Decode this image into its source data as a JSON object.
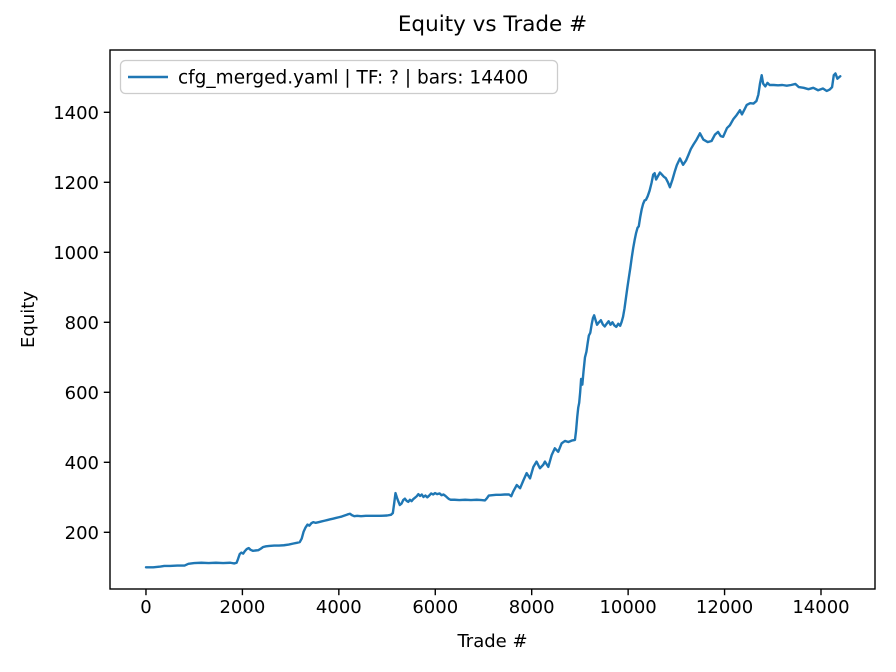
{
  "figure": {
    "title": "Equity vs Trade #",
    "xlabel": "Trade #",
    "ylabel": "Equity",
    "legend_label": "cfg_merged.yaml | TF: ? | bars: 14400",
    "line_color": "#1f77b4",
    "axis_color": "#000000",
    "legend_border_color": "#cccccc",
    "background": "#ffffff"
  },
  "chart_data": {
    "type": "line",
    "title": "Equity vs Trade #",
    "xlabel": "Trade #",
    "ylabel": "Equity",
    "legend": [
      {
        "label": "cfg_merged.yaml | TF: ? | bars: 14400",
        "color": "#1f77b4"
      }
    ],
    "legend_position": "upper left",
    "grid": false,
    "xlim": [
      -746,
      15120
    ],
    "ylim": [
      38,
      1578
    ],
    "xticks": [
      0,
      2000,
      4000,
      6000,
      8000,
      10000,
      12000,
      14000
    ],
    "yticks": [
      200,
      400,
      600,
      800,
      1000,
      1200,
      1400
    ],
    "series": [
      {
        "name": "cfg_merged.yaml | TF: ? | bars: 14400",
        "color": "#1f77b4",
        "points": [
          [
            0,
            100
          ],
          [
            150,
            100
          ],
          [
            300,
            102
          ],
          [
            380,
            104
          ],
          [
            500,
            104
          ],
          [
            650,
            105
          ],
          [
            800,
            105
          ],
          [
            880,
            110
          ],
          [
            1000,
            112
          ],
          [
            1150,
            113
          ],
          [
            1300,
            112
          ],
          [
            1450,
            113
          ],
          [
            1600,
            112
          ],
          [
            1750,
            113
          ],
          [
            1830,
            111
          ],
          [
            1880,
            113
          ],
          [
            1910,
            124
          ],
          [
            1945,
            138
          ],
          [
            1980,
            142
          ],
          [
            2015,
            139
          ],
          [
            2050,
            146
          ],
          [
            2090,
            152
          ],
          [
            2130,
            155
          ],
          [
            2170,
            150
          ],
          [
            2220,
            147
          ],
          [
            2270,
            148
          ],
          [
            2330,
            149
          ],
          [
            2380,
            153
          ],
          [
            2430,
            158
          ],
          [
            2490,
            160
          ],
          [
            2560,
            161
          ],
          [
            2660,
            162
          ],
          [
            2760,
            162
          ],
          [
            2860,
            163
          ],
          [
            2960,
            165
          ],
          [
            3060,
            168
          ],
          [
            3130,
            170
          ],
          [
            3190,
            172
          ],
          [
            3230,
            182
          ],
          [
            3270,
            202
          ],
          [
            3310,
            214
          ],
          [
            3350,
            222
          ],
          [
            3390,
            219
          ],
          [
            3430,
            226
          ],
          [
            3470,
            229
          ],
          [
            3520,
            227
          ],
          [
            3580,
            229
          ],
          [
            3640,
            231
          ],
          [
            3700,
            233
          ],
          [
            3760,
            235
          ],
          [
            3820,
            237
          ],
          [
            3880,
            239
          ],
          [
            3940,
            241
          ],
          [
            4000,
            243
          ],
          [
            4060,
            245
          ],
          [
            4120,
            248
          ],
          [
            4180,
            251
          ],
          [
            4230,
            253
          ],
          [
            4270,
            249
          ],
          [
            4320,
            246
          ],
          [
            4380,
            247
          ],
          [
            4460,
            246
          ],
          [
            4560,
            247
          ],
          [
            4700,
            247
          ],
          [
            4850,
            247
          ],
          [
            5000,
            248
          ],
          [
            5080,
            250
          ],
          [
            5120,
            255
          ],
          [
            5150,
            285
          ],
          [
            5175,
            312
          ],
          [
            5205,
            299
          ],
          [
            5235,
            288
          ],
          [
            5265,
            278
          ],
          [
            5300,
            282
          ],
          [
            5335,
            292
          ],
          [
            5370,
            296
          ],
          [
            5405,
            290
          ],
          [
            5440,
            287
          ],
          [
            5475,
            293
          ],
          [
            5510,
            289
          ],
          [
            5545,
            295
          ],
          [
            5580,
            299
          ],
          [
            5615,
            303
          ],
          [
            5650,
            309
          ],
          [
            5685,
            304
          ],
          [
            5720,
            308
          ],
          [
            5755,
            301
          ],
          [
            5795,
            305
          ],
          [
            5835,
            300
          ],
          [
            5875,
            305
          ],
          [
            5915,
            311
          ],
          [
            5955,
            308
          ],
          [
            5995,
            312
          ],
          [
            6040,
            309
          ],
          [
            6090,
            311
          ],
          [
            6130,
            306
          ],
          [
            6170,
            308
          ],
          [
            6210,
            304
          ],
          [
            6250,
            299
          ],
          [
            6285,
            295
          ],
          [
            6320,
            293
          ],
          [
            6400,
            293
          ],
          [
            6500,
            292
          ],
          [
            6620,
            293
          ],
          [
            6740,
            292
          ],
          [
            6860,
            293
          ],
          [
            6960,
            292
          ],
          [
            7030,
            291
          ],
          [
            7070,
            297
          ],
          [
            7110,
            305
          ],
          [
            7180,
            306
          ],
          [
            7260,
            307
          ],
          [
            7350,
            307
          ],
          [
            7440,
            308
          ],
          [
            7530,
            308
          ],
          [
            7575,
            303
          ],
          [
            7615,
            316
          ],
          [
            7690,
            335
          ],
          [
            7760,
            326
          ],
          [
            7830,
            349
          ],
          [
            7895,
            369
          ],
          [
            7965,
            354
          ],
          [
            8035,
            387
          ],
          [
            8100,
            402
          ],
          [
            8170,
            383
          ],
          [
            8240,
            393
          ],
          [
            8275,
            402
          ],
          [
            8345,
            387
          ],
          [
            8415,
            421
          ],
          [
            8480,
            440
          ],
          [
            8550,
            430
          ],
          [
            8620,
            454
          ],
          [
            8690,
            461
          ],
          [
            8760,
            458
          ],
          [
            8830,
            462
          ],
          [
            8897,
            464
          ],
          [
            8920,
            490
          ],
          [
            8945,
            530
          ],
          [
            8965,
            556
          ],
          [
            8985,
            570
          ],
          [
            9005,
            600
          ],
          [
            9025,
            638
          ],
          [
            9050,
            622
          ],
          [
            9075,
            660
          ],
          [
            9105,
            700
          ],
          [
            9135,
            716
          ],
          [
            9160,
            740
          ],
          [
            9185,
            762
          ],
          [
            9215,
            770
          ],
          [
            9245,
            795
          ],
          [
            9270,
            812
          ],
          [
            9295,
            820
          ],
          [
            9325,
            806
          ],
          [
            9355,
            793
          ],
          [
            9395,
            800
          ],
          [
            9435,
            806
          ],
          [
            9475,
            794
          ],
          [
            9515,
            788
          ],
          [
            9555,
            796
          ],
          [
            9595,
            803
          ],
          [
            9635,
            793
          ],
          [
            9675,
            800
          ],
          [
            9715,
            791
          ],
          [
            9755,
            787
          ],
          [
            9795,
            796
          ],
          [
            9835,
            790
          ],
          [
            9865,
            801
          ],
          [
            9895,
            816
          ],
          [
            9925,
            840
          ],
          [
            9955,
            870
          ],
          [
            9985,
            900
          ],
          [
            10015,
            928
          ],
          [
            10045,
            955
          ],
          [
            10075,
            985
          ],
          [
            10105,
            1012
          ],
          [
            10135,
            1035
          ],
          [
            10165,
            1055
          ],
          [
            10195,
            1070
          ],
          [
            10220,
            1074
          ],
          [
            10250,
            1100
          ],
          [
            10280,
            1122
          ],
          [
            10310,
            1138
          ],
          [
            10340,
            1148
          ],
          [
            10370,
            1150
          ],
          [
            10405,
            1160
          ],
          [
            10445,
            1176
          ],
          [
            10485,
            1198
          ],
          [
            10520,
            1222
          ],
          [
            10550,
            1226
          ],
          [
            10580,
            1208
          ],
          [
            10620,
            1218
          ],
          [
            10660,
            1228
          ],
          [
            10700,
            1222
          ],
          [
            10740,
            1216
          ],
          [
            10780,
            1212
          ],
          [
            10825,
            1200
          ],
          [
            10866,
            1186
          ],
          [
            10920,
            1208
          ],
          [
            10970,
            1232
          ],
          [
            11010,
            1249
          ],
          [
            11075,
            1268
          ],
          [
            11140,
            1250
          ],
          [
            11200,
            1262
          ],
          [
            11250,
            1278
          ],
          [
            11300,
            1295
          ],
          [
            11355,
            1308
          ],
          [
            11420,
            1322
          ],
          [
            11490,
            1340
          ],
          [
            11560,
            1322
          ],
          [
            11650,
            1315
          ],
          [
            11730,
            1318
          ],
          [
            11800,
            1336
          ],
          [
            11865,
            1344
          ],
          [
            11920,
            1332
          ],
          [
            11970,
            1330
          ],
          [
            12050,
            1355
          ],
          [
            12110,
            1363
          ],
          [
            12180,
            1380
          ],
          [
            12250,
            1392
          ],
          [
            12320,
            1406
          ],
          [
            12360,
            1394
          ],
          [
            12420,
            1410
          ],
          [
            12460,
            1421
          ],
          [
            12530,
            1426
          ],
          [
            12600,
            1425
          ],
          [
            12660,
            1432
          ],
          [
            12700,
            1450
          ],
          [
            12735,
            1482
          ],
          [
            12770,
            1506
          ],
          [
            12800,
            1482
          ],
          [
            12845,
            1474
          ],
          [
            12890,
            1484
          ],
          [
            12935,
            1478
          ],
          [
            13020,
            1478
          ],
          [
            13110,
            1477
          ],
          [
            13200,
            1478
          ],
          [
            13290,
            1476
          ],
          [
            13380,
            1478
          ],
          [
            13470,
            1481
          ],
          [
            13540,
            1472
          ],
          [
            13640,
            1470
          ],
          [
            13740,
            1466
          ],
          [
            13840,
            1470
          ],
          [
            13940,
            1463
          ],
          [
            14040,
            1468
          ],
          [
            14120,
            1461
          ],
          [
            14180,
            1465
          ],
          [
            14230,
            1472
          ],
          [
            14265,
            1506
          ],
          [
            14300,
            1511
          ],
          [
            14340,
            1496
          ],
          [
            14400,
            1503
          ]
        ]
      }
    ]
  }
}
